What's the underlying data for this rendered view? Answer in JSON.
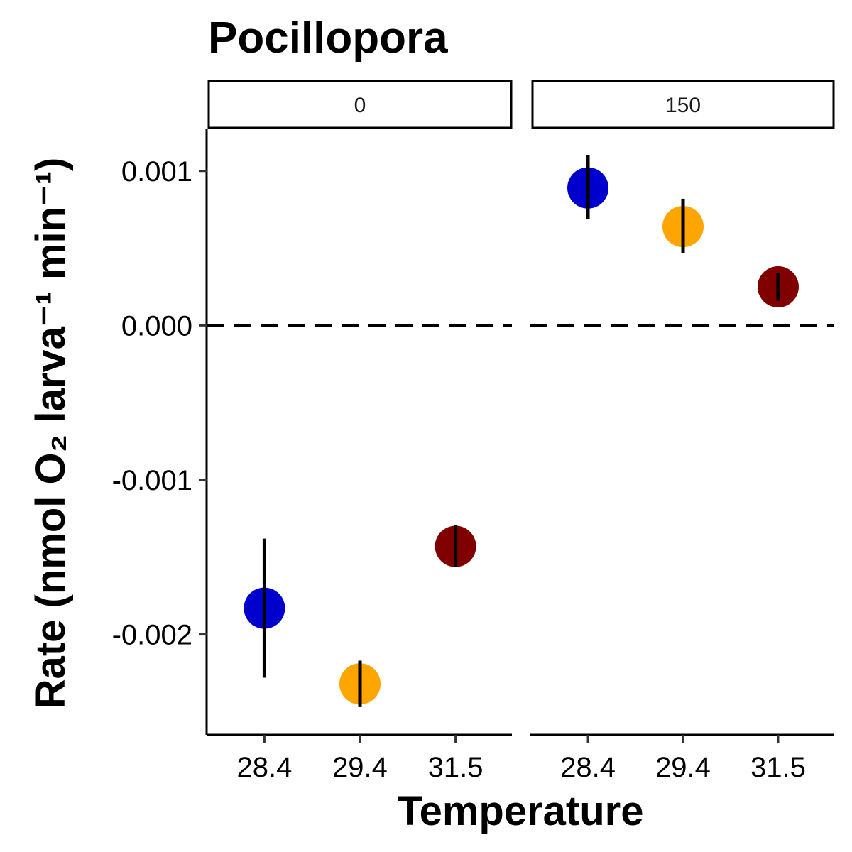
{
  "chart_data": {
    "type": "scatter",
    "title": "Pocillopora",
    "xlabel": "Temperature",
    "ylabel": "Rate (nmol O₂ larva⁻¹ min⁻¹)",
    "ylim": [
      -0.00265,
      0.00127
    ],
    "yticks": [
      "0.001",
      "0.000",
      "-0.001",
      "-0.002"
    ],
    "ytick_values": [
      0.001,
      0.0,
      -0.001,
      -0.002
    ],
    "categories": [
      "28.4",
      "29.4",
      "31.5"
    ],
    "reference_line": {
      "y": 0,
      "style": "dashed"
    },
    "grid": false,
    "legend": "none",
    "colors": {
      "28.4": "#0000CD",
      "29.4": "#FFA500",
      "31.5": "#800000"
    },
    "panels": [
      {
        "label": "0",
        "points": [
          {
            "x": "28.4",
            "y": -0.00183,
            "lower": -0.00228,
            "upper": -0.00138
          },
          {
            "x": "29.4",
            "y": -0.00232,
            "lower": -0.00247,
            "upper": -0.00217
          },
          {
            "x": "31.5",
            "y": -0.00143,
            "lower": -0.00156,
            "upper": -0.00129
          }
        ]
      },
      {
        "label": "150",
        "points": [
          {
            "x": "28.4",
            "y": 0.00089,
            "lower": 0.00069,
            "upper": 0.0011
          },
          {
            "x": "29.4",
            "y": 0.00064,
            "lower": 0.00047,
            "upper": 0.00082
          },
          {
            "x": "31.5",
            "y": 0.00025,
            "lower": 0.00016,
            "upper": 0.00034
          }
        ]
      }
    ]
  }
}
